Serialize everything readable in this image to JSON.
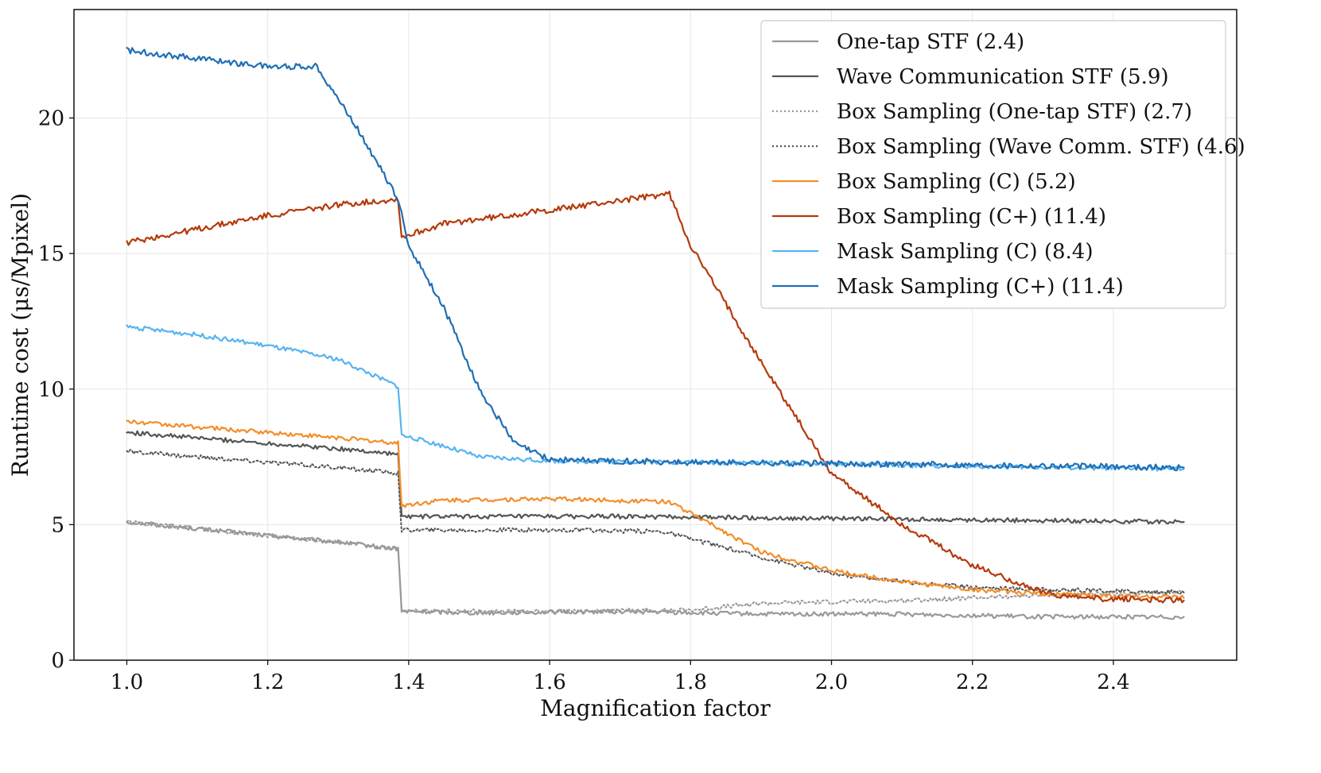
{
  "chart_data": {
    "type": "line",
    "title": "",
    "xlabel": "Magnification factor",
    "ylabel": "Runtime cost (μs/Mpixel)",
    "xlim": [
      0.925,
      2.575
    ],
    "ylim": [
      0,
      24
    ],
    "xticks": [
      1.0,
      1.2,
      1.4,
      1.6,
      1.8,
      2.0,
      2.2,
      2.4
    ],
    "xtick_labels": [
      "1.0",
      "1.2",
      "1.4",
      "1.6",
      "1.8",
      "2.0",
      "2.2",
      "2.4"
    ],
    "yticks": [
      0,
      5,
      10,
      15,
      20
    ],
    "ytick_labels": [
      "0",
      "5",
      "10",
      "15",
      "20"
    ],
    "grid": true,
    "legend_position": "top-right",
    "series": [
      {
        "name": "One-tap STF (2.4)",
        "color": "#999999",
        "dash": "solid",
        "x": [
          1.0,
          1.1,
          1.2,
          1.3,
          1.385,
          1.39,
          1.5,
          1.7,
          1.9,
          2.1,
          2.3,
          2.5
        ],
        "y": [
          5.1,
          4.85,
          4.6,
          4.35,
          4.1,
          1.8,
          1.75,
          1.8,
          1.7,
          1.7,
          1.6,
          1.6
        ]
      },
      {
        "name": "Wave Communication STF (5.9)",
        "color": "#555555",
        "dash": "solid",
        "x": [
          1.0,
          1.1,
          1.2,
          1.3,
          1.385,
          1.39,
          1.5,
          1.7,
          1.9,
          2.1,
          2.3,
          2.5
        ],
        "y": [
          8.4,
          8.2,
          8.0,
          7.8,
          7.6,
          5.3,
          5.3,
          5.3,
          5.25,
          5.2,
          5.15,
          5.1
        ]
      },
      {
        "name": "Box Sampling (One-tap STF) (2.7)",
        "color": "#999999",
        "dash": "dotted",
        "x": [
          1.0,
          1.1,
          1.2,
          1.3,
          1.385,
          1.39,
          1.6,
          1.8,
          1.9,
          2.1,
          2.3,
          2.5
        ],
        "y": [
          5.1,
          4.85,
          4.6,
          4.35,
          4.1,
          1.8,
          1.8,
          1.85,
          2.1,
          2.2,
          2.4,
          2.5
        ]
      },
      {
        "name": "Box Sampling (Wave Comm. STF) (4.6)",
        "color": "#555555",
        "dash": "dotted",
        "x": [
          1.0,
          1.1,
          1.2,
          1.3,
          1.385,
          1.39,
          1.6,
          1.76,
          1.9,
          2.0,
          2.1,
          2.2,
          2.3,
          2.5
        ],
        "y": [
          7.7,
          7.5,
          7.3,
          7.1,
          6.9,
          4.8,
          4.8,
          4.75,
          3.8,
          3.2,
          2.9,
          2.7,
          2.6,
          2.5
        ]
      },
      {
        "name": "Box Sampling (C) (5.2)",
        "color": "#f28e2b",
        "dash": "solid",
        "x": [
          1.0,
          1.1,
          1.2,
          1.3,
          1.385,
          1.39,
          1.45,
          1.6,
          1.77,
          1.83,
          1.9,
          2.0,
          2.1,
          2.2,
          2.3,
          2.5
        ],
        "y": [
          8.8,
          8.6,
          8.4,
          8.2,
          8.0,
          5.7,
          5.9,
          5.95,
          5.85,
          5.0,
          4.0,
          3.3,
          2.9,
          2.6,
          2.45,
          2.3
        ]
      },
      {
        "name": "Box Sampling (C+) (11.4)",
        "color": "#b53a0c",
        "dash": "solid",
        "x": [
          1.0,
          1.1,
          1.2,
          1.3,
          1.385,
          1.39,
          1.45,
          1.6,
          1.77,
          1.8,
          1.9,
          2.0,
          2.1,
          2.2,
          2.3,
          2.35,
          2.5
        ],
        "y": [
          15.4,
          15.9,
          16.4,
          16.8,
          17.0,
          15.6,
          16.1,
          16.6,
          17.2,
          15.3,
          11.0,
          6.9,
          5.0,
          3.5,
          2.5,
          2.3,
          2.2
        ]
      },
      {
        "name": "Mask Sampling (C) (8.4)",
        "color": "#56b4f0",
        "dash": "solid",
        "x": [
          1.0,
          1.1,
          1.2,
          1.3,
          1.385,
          1.39,
          1.45,
          1.5,
          1.6,
          1.8,
          2.0,
          2.2,
          2.5
        ],
        "y": [
          12.3,
          12.0,
          11.6,
          11.1,
          10.1,
          8.3,
          7.9,
          7.5,
          7.35,
          7.3,
          7.25,
          7.15,
          7.05
        ]
      },
      {
        "name": "Mask Sampling (C+) (11.4)",
        "color": "#1f6fb5",
        "dash": "solid",
        "x": [
          1.0,
          1.1,
          1.2,
          1.27,
          1.33,
          1.385,
          1.4,
          1.45,
          1.5,
          1.55,
          1.6,
          1.8,
          2.0,
          2.2,
          2.5
        ],
        "y": [
          22.5,
          22.2,
          21.9,
          21.9,
          19.5,
          17.0,
          15.3,
          13.0,
          10.0,
          8.0,
          7.4,
          7.3,
          7.25,
          7.2,
          7.1
        ]
      }
    ]
  }
}
